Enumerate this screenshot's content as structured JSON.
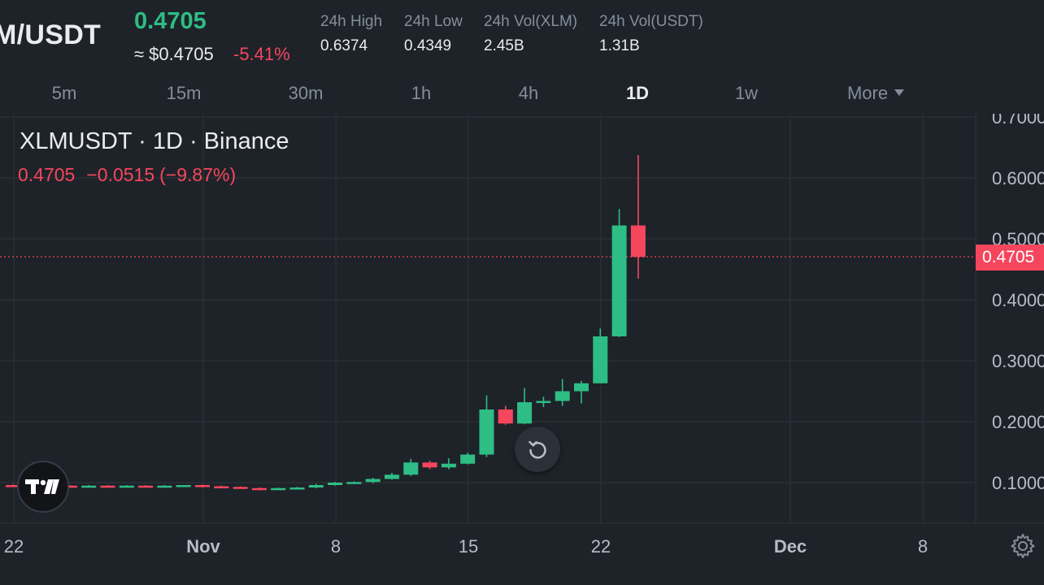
{
  "header": {
    "pair": "M/USDT",
    "last_price": "0.4705",
    "fiat_price": "≈ $0.4705",
    "change_pct": "-5.41%",
    "stats": [
      {
        "label": "24h High",
        "value": "0.6374"
      },
      {
        "label": "24h Low",
        "value": "0.4349"
      },
      {
        "label": "24h Vol(XLM)",
        "value": "2.45B"
      },
      {
        "label": "24h Vol(USDT)",
        "value": "1.31B"
      }
    ]
  },
  "tabs": [
    "5m",
    "15m",
    "30m",
    "1h",
    "4h",
    "1D",
    "1w",
    "More"
  ],
  "active_tab": "1D",
  "legend": {
    "title": "XLMUSDT · 1D · Binance",
    "close": "0.4705",
    "change": "−0.0515",
    "change_pct": "(−9.87%)"
  },
  "colors": {
    "background": "#1e2329",
    "up": "#2ebd85",
    "down": "#f6465d",
    "grid": "#2b3139",
    "text_muted": "#848e9c"
  },
  "icons": {
    "reset": "reset-rotate-icon",
    "logo": "tradingview-logo-icon",
    "settings": "gear-icon",
    "more": "caret-down-icon"
  },
  "chart_data": {
    "type": "candlestick",
    "symbol": "XLMUSDT",
    "interval": "1D",
    "y_ticks": [
      "0.1000",
      "0.2000",
      "0.3000",
      "0.4000",
      "0.5000",
      "0.6000",
      "0.7000"
    ],
    "ylim": [
      0.03,
      0.7
    ],
    "x_ticks": [
      "22",
      "Nov",
      "8",
      "15",
      "22",
      "Dec",
      "8"
    ],
    "current_price": "0.4705",
    "candles": [
      {
        "date": "Oct 22",
        "open": 0.096,
        "high": 0.097,
        "low": 0.094,
        "close": 0.095
      },
      {
        "date": "Oct 23",
        "open": 0.095,
        "high": 0.097,
        "low": 0.094,
        "close": 0.096
      },
      {
        "date": "Oct 24",
        "open": 0.096,
        "high": 0.097,
        "low": 0.094,
        "close": 0.095
      },
      {
        "date": "Oct 25",
        "open": 0.095,
        "high": 0.096,
        "low": 0.093,
        "close": 0.094
      },
      {
        "date": "Oct 26",
        "open": 0.094,
        "high": 0.096,
        "low": 0.093,
        "close": 0.095
      },
      {
        "date": "Oct 27",
        "open": 0.095,
        "high": 0.096,
        "low": 0.093,
        "close": 0.094
      },
      {
        "date": "Oct 28",
        "open": 0.094,
        "high": 0.096,
        "low": 0.093,
        "close": 0.095
      },
      {
        "date": "Oct 29",
        "open": 0.095,
        "high": 0.096,
        "low": 0.093,
        "close": 0.094
      },
      {
        "date": "Oct 30",
        "open": 0.094,
        "high": 0.096,
        "low": 0.093,
        "close": 0.095
      },
      {
        "date": "Oct 31",
        "open": 0.095,
        "high": 0.096,
        "low": 0.093,
        "close": 0.096
      },
      {
        "date": "Nov 1",
        "open": 0.096,
        "high": 0.097,
        "low": 0.092,
        "close": 0.094
      },
      {
        "date": "Nov 2",
        "open": 0.094,
        "high": 0.095,
        "low": 0.092,
        "close": 0.093
      },
      {
        "date": "Nov 3",
        "open": 0.093,
        "high": 0.094,
        "low": 0.09,
        "close": 0.091
      },
      {
        "date": "Nov 4",
        "open": 0.091,
        "high": 0.092,
        "low": 0.089,
        "close": 0.09
      },
      {
        "date": "Nov 5",
        "open": 0.09,
        "high": 0.092,
        "low": 0.089,
        "close": 0.091
      },
      {
        "date": "Nov 6",
        "open": 0.091,
        "high": 0.093,
        "low": 0.09,
        "close": 0.092
      },
      {
        "date": "Nov 7",
        "open": 0.092,
        "high": 0.098,
        "low": 0.091,
        "close": 0.096
      },
      {
        "date": "Nov 8",
        "open": 0.096,
        "high": 0.101,
        "low": 0.095,
        "close": 0.1
      },
      {
        "date": "Nov 9",
        "open": 0.1,
        "high": 0.102,
        "low": 0.098,
        "close": 0.101
      },
      {
        "date": "Nov 10",
        "open": 0.101,
        "high": 0.108,
        "low": 0.099,
        "close": 0.106
      },
      {
        "date": "Nov 11",
        "open": 0.106,
        "high": 0.116,
        "low": 0.105,
        "close": 0.113
      },
      {
        "date": "Nov 12",
        "open": 0.113,
        "high": 0.139,
        "low": 0.111,
        "close": 0.133
      },
      {
        "date": "Nov 13",
        "open": 0.133,
        "high": 0.136,
        "low": 0.122,
        "close": 0.125
      },
      {
        "date": "Nov 14",
        "open": 0.125,
        "high": 0.14,
        "low": 0.122,
        "close": 0.131
      },
      {
        "date": "Nov 15",
        "open": 0.131,
        "high": 0.149,
        "low": 0.13,
        "close": 0.146
      },
      {
        "date": "Nov 16",
        "open": 0.146,
        "high": 0.243,
        "low": 0.142,
        "close": 0.22
      },
      {
        "date": "Nov 17",
        "open": 0.22,
        "high": 0.226,
        "low": 0.195,
        "close": 0.197
      },
      {
        "date": "Nov 18",
        "open": 0.197,
        "high": 0.255,
        "low": 0.196,
        "close": 0.232
      },
      {
        "date": "Nov 19",
        "open": 0.232,
        "high": 0.241,
        "low": 0.224,
        "close": 0.234
      },
      {
        "date": "Nov 20",
        "open": 0.234,
        "high": 0.27,
        "low": 0.226,
        "close": 0.25
      },
      {
        "date": "Nov 21",
        "open": 0.25,
        "high": 0.267,
        "low": 0.23,
        "close": 0.263
      },
      {
        "date": "Nov 22",
        "open": 0.263,
        "high": 0.353,
        "low": 0.263,
        "close": 0.34
      },
      {
        "date": "Nov 23",
        "open": 0.34,
        "high": 0.549,
        "low": 0.339,
        "close": 0.522
      },
      {
        "date": "Nov 24",
        "open": 0.522,
        "high": 0.6374,
        "low": 0.4349,
        "close": 0.4705
      }
    ]
  }
}
